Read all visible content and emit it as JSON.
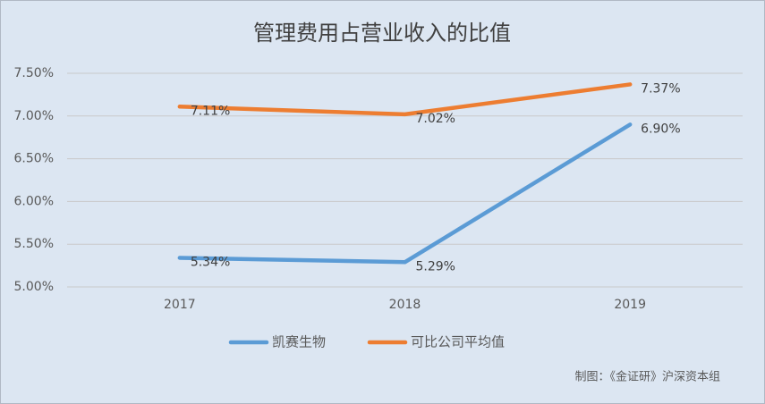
{
  "chart_data": {
    "type": "line",
    "title": "管理费用占营业收入的比值",
    "categories": [
      "2017",
      "2018",
      "2019"
    ],
    "series": [
      {
        "name": "凯赛生物",
        "color": "#5b9bd5",
        "values": [
          5.34,
          5.29,
          6.9
        ],
        "value_labels": [
          "5.34%",
          "5.29%",
          "6.90%"
        ]
      },
      {
        "name": "可比公司平均值",
        "color": "#ed7d31",
        "values": [
          7.11,
          7.02,
          7.37
        ],
        "value_labels": [
          "7.11%",
          "7.02%",
          "7.37%"
        ]
      }
    ],
    "ylim": [
      5.0,
      7.5
    ],
    "yticks": [
      {
        "value": 5.0,
        "label": "5.00%"
      },
      {
        "value": 5.5,
        "label": "5.50%"
      },
      {
        "value": 6.0,
        "label": "6.00%"
      },
      {
        "value": 6.5,
        "label": "6.50%"
      },
      {
        "value": 7.0,
        "label": "7.00%"
      },
      {
        "value": 7.5,
        "label": "7.50%"
      }
    ],
    "grid": true,
    "legend": "bottom",
    "note": "制图：《金证研》沪深资本组"
  }
}
